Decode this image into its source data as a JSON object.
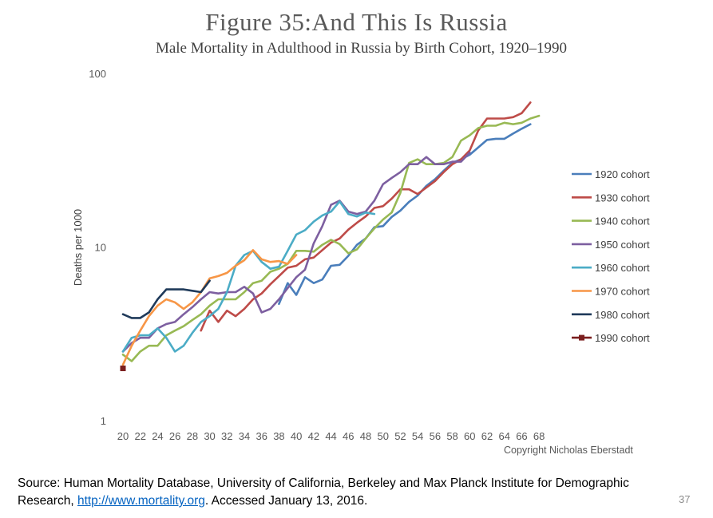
{
  "slide": {
    "title": "Figure 35:And This Is Russia",
    "copyright": "Copyright Nicholas Eberstadt",
    "source_prefix": "Source: Human Mortality Database, University of California, Berkeley and Max Planck Institute for Demographic Research, ",
    "source_link": "http://www.mortality.org",
    "source_suffix": ". Accessed January 13, 2016.",
    "page_number": "37"
  },
  "chart_data": {
    "type": "line",
    "title": "Male Mortality in Adulthood in Russia by Birth Cohort, 1920–1990",
    "xlabel": "",
    "ylabel": "Deaths per 1000",
    "y_scale": "log",
    "ylim": [
      1,
      100
    ],
    "y_ticks": [
      "1",
      "10",
      "100"
    ],
    "xlim": [
      20,
      69
    ],
    "x_ticks": [
      "20",
      "22",
      "24",
      "26",
      "28",
      "30",
      "32",
      "34",
      "36",
      "38",
      "40",
      "42",
      "44",
      "46",
      "48",
      "50",
      "52",
      "54",
      "56",
      "58",
      "60",
      "62",
      "64",
      "66",
      "68"
    ],
    "grid": false,
    "legend_position": "right",
    "series": [
      {
        "name": "1920 cohort",
        "color": "#4a7ebb",
        "start_age": 38,
        "values": [
          4.7,
          6.2,
          5.3,
          6.7,
          6.2,
          6.5,
          7.8,
          7.9,
          8.9,
          10.3,
          11.2,
          13.0,
          13.2,
          14.9,
          16.2,
          18.2,
          19.8,
          22.5,
          24.6,
          27.5,
          30.6,
          32.0,
          34.0,
          37.5,
          41.4,
          42.0,
          42.0,
          45.0,
          48.0,
          51.0
        ]
      },
      {
        "name": "1930 cohort",
        "color": "#be4b48",
        "start_age": 29,
        "values": [
          3.3,
          4.3,
          3.7,
          4.3,
          4.0,
          4.4,
          5.0,
          5.4,
          6.1,
          6.8,
          7.6,
          7.8,
          8.5,
          8.7,
          9.6,
          10.6,
          11.2,
          12.6,
          13.8,
          15.0,
          16.8,
          17.2,
          19.0,
          21.5,
          21.5,
          20.2,
          22.0,
          24.0,
          27.0,
          30.0,
          32.0,
          36.0,
          47.0,
          55.0,
          55.0,
          55.0,
          56.0,
          59.0,
          68.0
        ]
      },
      {
        "name": "1940 cohort",
        "color": "#98b954",
        "start_age": 20,
        "values": [
          2.4,
          2.2,
          2.5,
          2.7,
          2.7,
          3.1,
          3.3,
          3.5,
          3.8,
          4.1,
          4.6,
          5.0,
          5.0,
          5.0,
          5.5,
          6.2,
          6.4,
          7.2,
          7.5,
          8.0,
          9.5,
          9.5,
          9.4,
          10.3,
          11.0,
          10.4,
          9.2,
          9.7,
          11.2,
          12.8,
          14.4,
          15.8,
          20.5,
          30.5,
          32.0,
          30.0,
          30.0,
          30.5,
          33.0,
          41.0,
          44.0,
          48.5,
          50.0,
          50.0,
          52.0,
          51.0,
          52.0,
          55.0,
          57.0
        ]
      },
      {
        "name": "1950 cohort",
        "color": "#7d5fa0",
        "start_age": 20,
        "values": [
          2.5,
          2.8,
          3.0,
          3.0,
          3.4,
          3.6,
          3.7,
          4.1,
          4.5,
          5.0,
          5.5,
          5.4,
          5.5,
          5.5,
          5.9,
          5.4,
          4.2,
          4.4,
          5.0,
          5.8,
          6.7,
          7.4,
          10.5,
          13.2,
          17.5,
          18.5,
          16.0,
          15.5,
          16.0,
          18.5,
          23.0,
          25.0,
          27.0,
          30.0,
          30.0,
          33.0,
          30.0,
          30.0,
          31.0,
          31.0,
          35.0
        ]
      },
      {
        "name": "1960 cohort",
        "color": "#4bacc6",
        "start_age": 20,
        "values": [
          2.5,
          3.0,
          3.1,
          3.1,
          3.4,
          3.0,
          2.5,
          2.7,
          3.2,
          3.7,
          4.0,
          4.4,
          5.5,
          7.8,
          9.0,
          9.5,
          8.2,
          7.5,
          7.7,
          9.5,
          11.8,
          12.5,
          14.0,
          15.2,
          16.0,
          18.3,
          15.5,
          15.0,
          15.8,
          15.5
        ]
      },
      {
        "name": "1970 cohort",
        "color": "#f79646",
        "start_age": 20,
        "values": [
          2.1,
          2.7,
          3.3,
          4.0,
          4.6,
          5.0,
          4.8,
          4.4,
          4.8,
          5.5,
          6.6,
          6.8,
          7.1,
          7.8,
          8.4,
          9.6,
          8.5,
          8.2,
          8.3,
          8.0,
          9.0
        ]
      },
      {
        "name": "1980 cohort",
        "color": "#1f3a5a",
        "start_age": 20,
        "values": [
          4.1,
          3.9,
          3.9,
          4.2,
          5.0,
          5.7,
          5.7,
          5.7,
          5.6,
          5.5,
          6.4
        ]
      },
      {
        "name": "1990 cohort",
        "color": "#7b1f1f",
        "start_age": 20,
        "marker": "square",
        "values": [
          2.0
        ]
      }
    ]
  }
}
